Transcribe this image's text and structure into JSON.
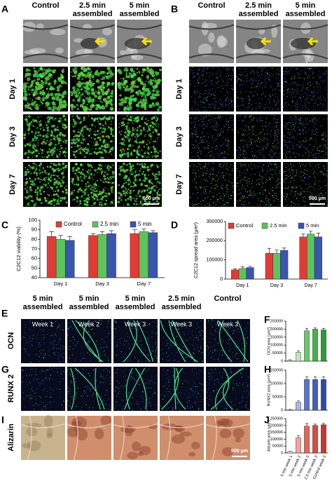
{
  "figure": {
    "panels": [
      "A",
      "B",
      "C",
      "D",
      "E",
      "F",
      "G",
      "H",
      "I",
      "J"
    ],
    "a": {
      "columns": [
        "Control",
        "2.5 min assembled",
        "5 min assembled"
      ],
      "rows": [
        "Day 1",
        "Day 3",
        "Day 7"
      ],
      "scale_bar": "500 μm"
    },
    "b": {
      "columns": [
        "Control",
        "2.5 min assembled",
        "5 min assembled"
      ],
      "rows": [
        "Day 1",
        "Day 3",
        "Day 7"
      ],
      "scale_bar": "500 μm"
    },
    "e": {
      "columns": [
        "5 min assembled",
        "5 min assembled",
        "5 min assembled",
        "2.5 min assembled",
        "Control"
      ],
      "wells": [
        "Week 1",
        "Week 2",
        "Week 3",
        "Week 3",
        "Week 3"
      ],
      "rows": [
        "OCN",
        "RUNX 2",
        "Alizarin"
      ],
      "scale_bar": "500 μm"
    }
  },
  "chart_data": [
    {
      "type": "bar",
      "y_label": "C2C12 viability (%)",
      "categories": [
        "Day 1",
        "Day 3",
        "Day 7"
      ],
      "series": [
        {
          "name": "Control",
          "color": "#e23b35",
          "values": [
            83,
            84,
            86
          ],
          "errors": [
            5,
            2,
            4
          ]
        },
        {
          "name": "2.5 min",
          "color": "#5cc45a",
          "values": [
            80,
            85,
            88
          ],
          "errors": [
            4,
            3,
            3
          ]
        },
        {
          "name": "5 min",
          "color": "#3a55b0",
          "values": [
            79,
            86,
            87
          ],
          "errors": [
            4,
            3,
            2
          ]
        }
      ],
      "ylim": [
        40,
        100
      ],
      "yticks": [
        40,
        50,
        60,
        70,
        80,
        90,
        100
      ],
      "legend": "top"
    },
    {
      "type": "bar",
      "y_label": "C2C12 spread area (μm²)",
      "categories": [
        "Day 1",
        "Day 3",
        "Day 7"
      ],
      "series": [
        {
          "name": "Control",
          "color": "#e23b35",
          "values": [
            48000,
            135000,
            220000
          ],
          "errors": [
            6000,
            25000,
            15000
          ]
        },
        {
          "name": "2.5 min",
          "color": "#5cc45a",
          "values": [
            55000,
            135000,
            235000
          ],
          "errors": [
            8000,
            18000,
            15000
          ]
        },
        {
          "name": "5 min",
          "color": "#3a55b0",
          "values": [
            60000,
            150000,
            220000
          ],
          "errors": [
            6000,
            12000,
            20000
          ]
        }
      ],
      "ylim": [
        0,
        300000
      ],
      "yticks": [
        0,
        100000,
        200000,
        300000
      ],
      "legend": "top"
    },
    {
      "type": "bar",
      "y_label": "OCN area (μm²)",
      "categories": [
        null,
        null,
        null,
        null,
        null
      ],
      "values": [
        5000,
        55000,
        190000,
        200000,
        195000
      ],
      "errors": [
        3000,
        10000,
        15000,
        8000,
        10000
      ],
      "colors": [
        "#f2f7f0",
        "#bfe6b8",
        "#6cc66a",
        "#46b04a",
        "#2f9a3a"
      ],
      "ylim": [
        0,
        250000
      ],
      "yticks": [
        0,
        50000,
        100000,
        150000,
        200000,
        250000
      ]
    },
    {
      "type": "bar",
      "y_label": "RUNX2 area (μm²)",
      "categories": [
        null,
        null,
        null,
        null,
        null
      ],
      "values": [
        2000,
        30000,
        115000,
        115000,
        115000
      ],
      "errors": [
        1000,
        5000,
        10000,
        10000,
        10000
      ],
      "colors": [
        "#eef0f8",
        "#a8b8e6",
        "#5a74cc",
        "#4160bd",
        "#2f4aa8"
      ],
      "ylim": [
        0,
        150000
      ],
      "yticks": [
        0,
        50000,
        100000,
        150000
      ]
    },
    {
      "type": "bar",
      "y_label": "Alizarin area (μm²)",
      "categories": [
        "5 min week 1",
        "5 min week 2",
        "5 min week 3",
        "2.5 min week 3",
        "Control week 3"
      ],
      "values": [
        10000,
        110000,
        195000,
        200000,
        205000
      ],
      "errors": [
        3000,
        15000,
        20000,
        10000,
        10000
      ],
      "colors": [
        "#fbeaea",
        "#f0a59e",
        "#e4665c",
        "#d94a40",
        "#c8362e"
      ],
      "ylim": [
        0,
        250000
      ],
      "yticks": [
        0,
        50000,
        100000,
        150000,
        200000,
        250000
      ]
    }
  ]
}
